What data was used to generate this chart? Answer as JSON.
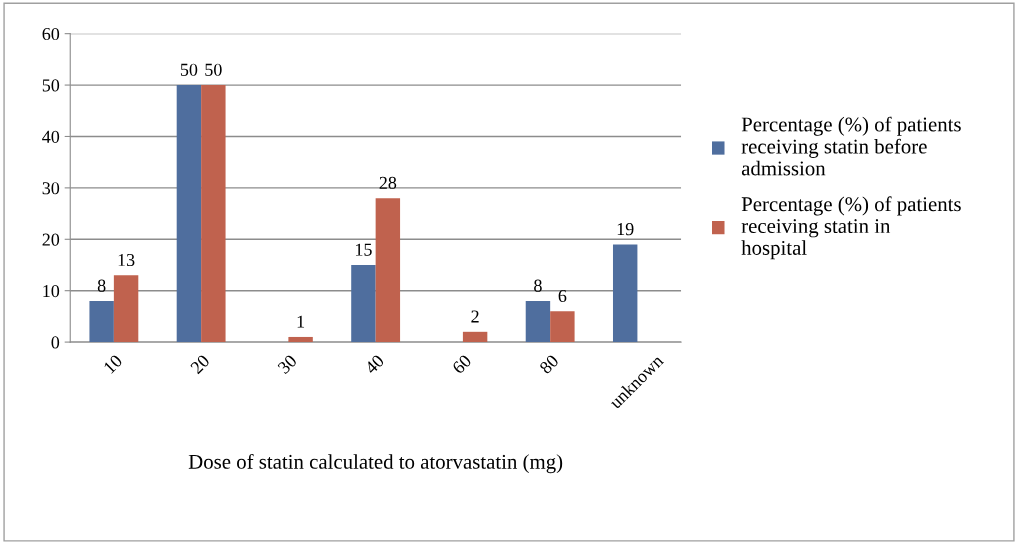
{
  "chart_data": {
    "type": "bar",
    "xlabel": "Dose of statin calculated to atorvastatin (mg)",
    "categories": [
      "10",
      "20",
      "30",
      "40",
      "60",
      "80",
      "unknown"
    ],
    "series": [
      {
        "name": "Percentage (%) of patients receiving statin before admission",
        "color": "#4f6e9e",
        "values": [
          8,
          50,
          null,
          15,
          null,
          8,
          19
        ]
      },
      {
        "name": "Percentage (%) of patients receiving statin in hospital",
        "color": "#c0624e",
        "values": [
          13,
          50,
          1,
          28,
          2,
          6,
          null
        ]
      }
    ],
    "ylim": [
      0,
      60
    ],
    "yticks": [
      0,
      10,
      20,
      30,
      40,
      50,
      60
    ],
    "grid": "y",
    "legend": "right",
    "data_labels": true
  }
}
